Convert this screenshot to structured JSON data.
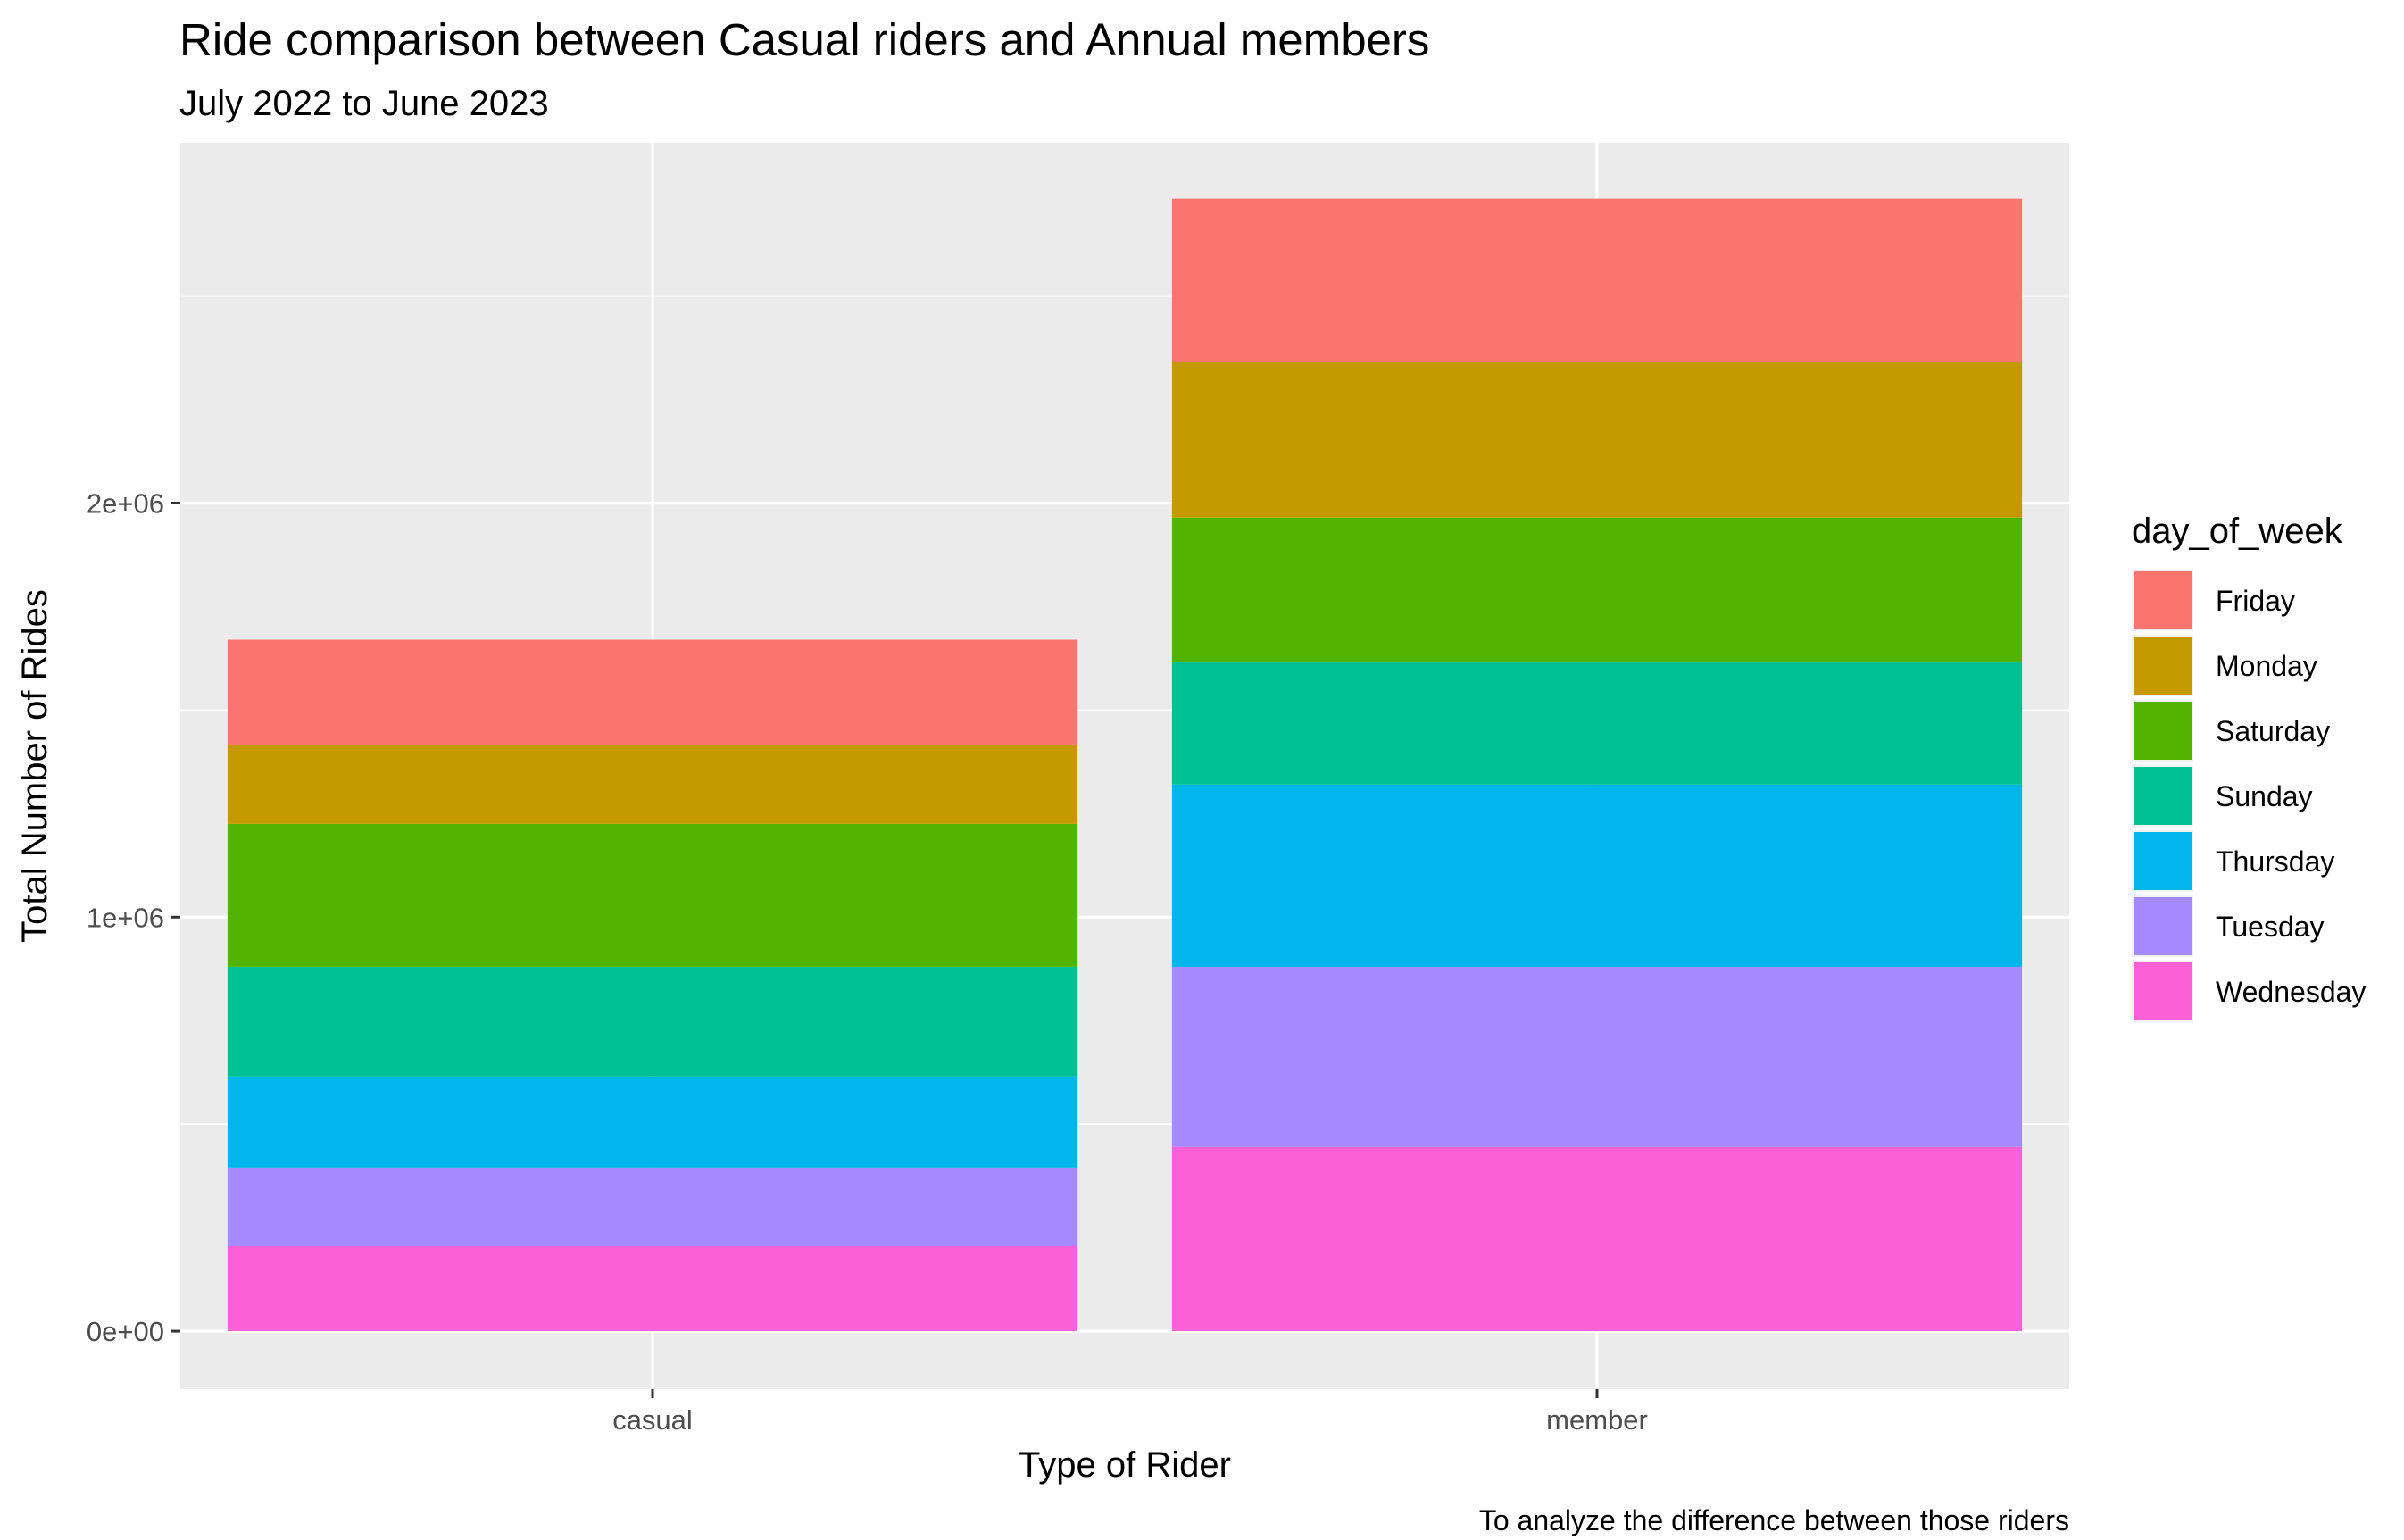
{
  "chart_data": {
    "type": "bar",
    "stacked": true,
    "title": "Ride comparison between Casual riders and Annual members",
    "subtitle": "July 2022 to June 2023",
    "xlabel": "Type of Rider",
    "ylabel": "Total Number of Rides",
    "caption": "To analyze the difference between those riders",
    "categories": [
      "casual",
      "member"
    ],
    "ylim": [
      -140000,
      2870000
    ],
    "yticks": [
      {
        "value": 0,
        "label": "0e+00"
      },
      {
        "value": 1000000,
        "label": "1e+06"
      },
      {
        "value": 2000000,
        "label": "2e+06"
      }
    ],
    "grid": true,
    "legend": {
      "title": "day_of_week",
      "position": "right"
    },
    "series": [
      {
        "name": "Friday",
        "color": "#F8766D",
        "values": [
          255000,
          395000
        ]
      },
      {
        "name": "Monday",
        "color": "#C49A00",
        "values": [
          190000,
          375000
        ]
      },
      {
        "name": "Saturday",
        "color": "#53B400",
        "values": [
          345000,
          350000
        ]
      },
      {
        "name": "Sunday",
        "color": "#00C094",
        "values": [
          265000,
          295000
        ]
      },
      {
        "name": "Thursday",
        "color": "#00B6EB",
        "values": [
          220000,
          440000
        ]
      },
      {
        "name": "Tuesday",
        "color": "#A58AFF",
        "values": [
          190000,
          435000
        ]
      },
      {
        "name": "Wednesday",
        "color": "#FB61D7",
        "values": [
          205000,
          445000
        ]
      }
    ]
  }
}
